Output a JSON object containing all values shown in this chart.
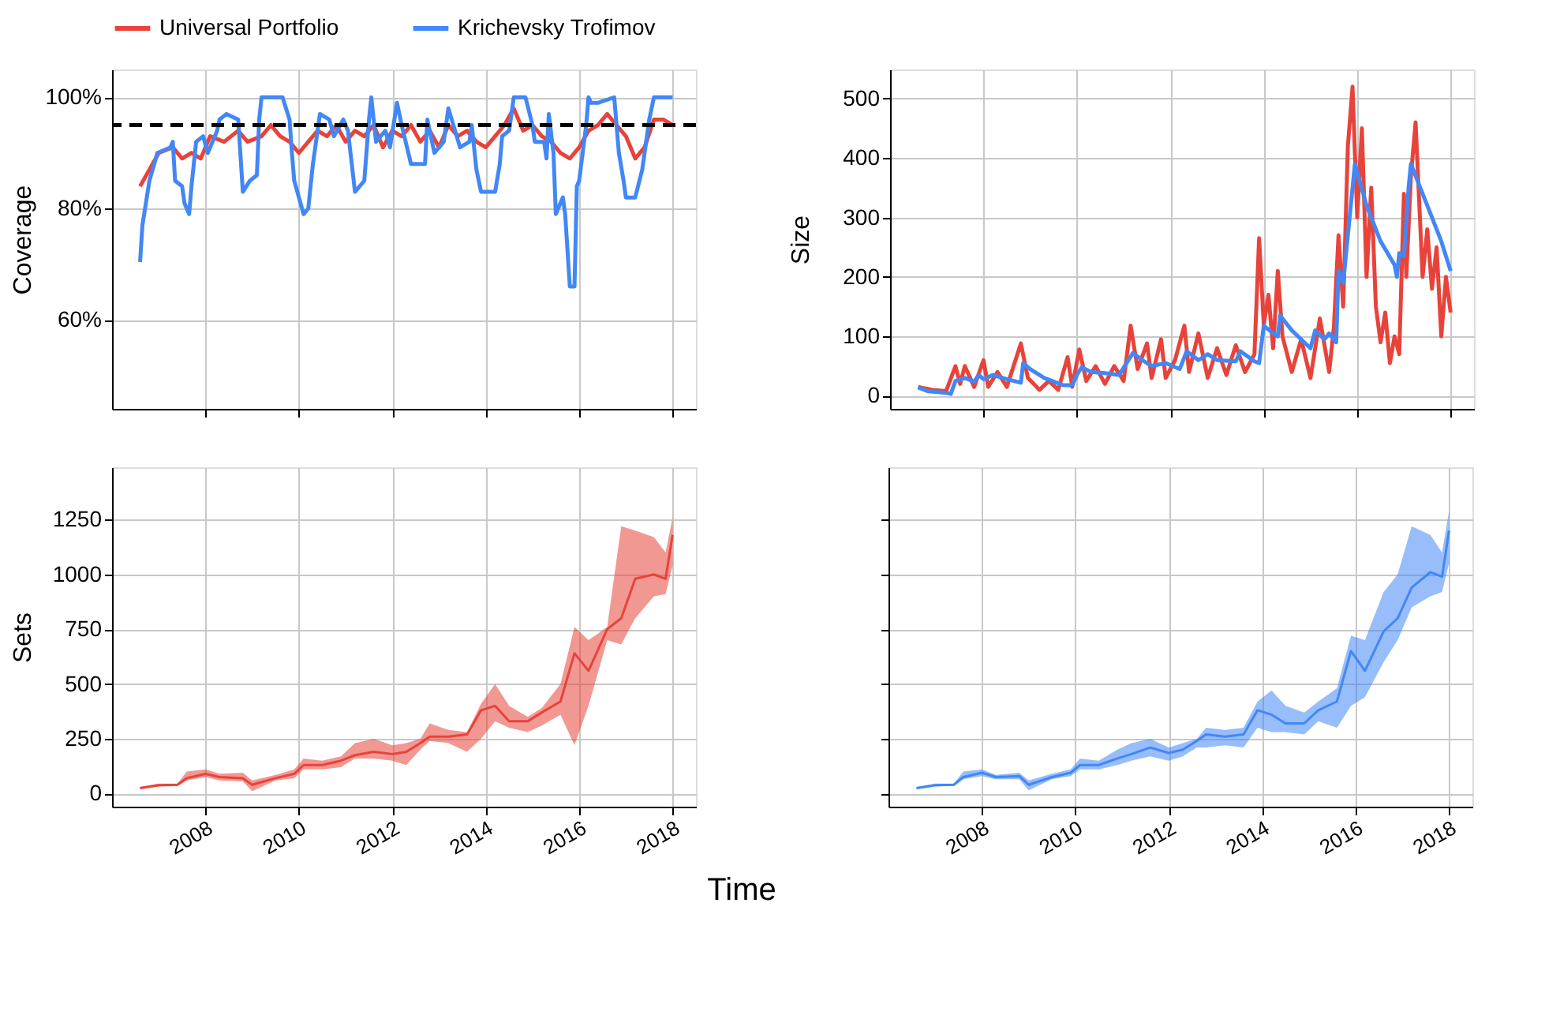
{
  "chart_data": [
    {
      "type": "line",
      "ylabel": "Coverage",
      "legend": "top left",
      "grid": true,
      "tick_labels": "y",
      "line_style": "solid",
      "xlim": [
        2006.0,
        2018.5
      ],
      "xticks": [
        2008,
        2010,
        2012,
        2014,
        2016,
        2018
      ],
      "ylim": [
        44,
        105
      ],
      "yticks": [
        {
          "value": 60,
          "label": "60%"
        },
        {
          "value": 80,
          "label": "80%"
        },
        {
          "value": 100,
          "label": "100%"
        }
      ],
      "ref_lines": [
        {
          "axis": "y",
          "value": 95,
          "color": "#000000",
          "line_style": "dashed"
        }
      ],
      "series": [
        {
          "name": "Universal Portfolio",
          "color": "#e8433a",
          "x": [
            2006.6,
            2006.8,
            2007.0,
            2007.3,
            2007.5,
            2007.7,
            2007.9,
            2008.1,
            2008.4,
            2008.7,
            2008.9,
            2009.2,
            2009.4,
            2009.6,
            2009.8,
            2010.0,
            2010.2,
            2010.4,
            2010.6,
            2010.8,
            2011.0,
            2011.2,
            2011.4,
            2011.6,
            2011.8,
            2012.0,
            2012.2,
            2012.4,
            2012.6,
            2012.8,
            2013.0,
            2013.2,
            2013.4,
            2013.6,
            2013.8,
            2014.0,
            2014.2,
            2014.4,
            2014.6,
            2014.8,
            2015.0,
            2015.2,
            2015.4,
            2015.6,
            2015.8,
            2016.0,
            2016.2,
            2016.4,
            2016.6,
            2016.8,
            2017.0,
            2017.2,
            2017.4,
            2017.6,
            2017.8,
            2018.0
          ],
          "values": [
            84,
            87,
            90,
            91,
            89,
            90,
            89,
            93,
            92,
            94,
            92,
            93,
            95,
            93,
            92,
            90,
            92,
            94,
            93,
            95,
            92,
            94,
            93,
            95,
            91,
            94,
            93,
            95,
            92,
            94,
            91,
            95,
            93,
            94,
            92,
            91,
            93,
            95,
            98,
            94,
            95,
            93,
            92,
            90,
            89,
            91,
            94,
            95,
            97,
            95,
            93,
            89,
            91,
            96,
            96,
            95
          ]
        },
        {
          "name": "Krichevsky Trofimov",
          "color": "#4287f5",
          "x": [
            2006.6,
            2006.65,
            2006.8,
            2006.97,
            2007.25,
            2007.3,
            2007.35,
            2007.5,
            2007.55,
            2007.65,
            2007.7,
            2007.8,
            2007.95,
            2008.05,
            2008.25,
            2008.3,
            2008.45,
            2008.7,
            2008.8,
            2008.95,
            2009.1,
            2009.15,
            2009.2,
            2009.65,
            2009.8,
            2009.85,
            2009.9,
            2010.1,
            2010.2,
            2010.3,
            2010.45,
            2010.65,
            2010.75,
            2010.95,
            2011.05,
            2011.2,
            2011.4,
            2011.5,
            2011.55,
            2011.65,
            2011.85,
            2011.95,
            2012.1,
            2012.2,
            2012.4,
            2012.7,
            2012.75,
            2012.9,
            2013.1,
            2013.2,
            2013.45,
            2013.65,
            2013.7,
            2013.8,
            2013.9,
            2014.2,
            2014.3,
            2014.35,
            2014.5,
            2014.6,
            2014.85,
            2015.0,
            2015.05,
            2015.25,
            2015.3,
            2015.35,
            2015.45,
            2015.5,
            2015.65,
            2015.7,
            2015.8,
            2015.9,
            2015.95,
            2016.0,
            2016.15,
            2016.2,
            2016.25,
            2016.4,
            2016.75,
            2016.8,
            2016.85,
            2016.95,
            2017.0,
            2017.2,
            2017.35,
            2017.5,
            2017.6,
            2018.0
          ],
          "values": [
            70.4,
            77,
            85,
            90,
            91,
            92,
            85,
            84,
            81,
            79,
            84,
            92,
            93,
            90,
            94,
            96,
            97,
            96,
            83,
            85,
            86,
            96,
            100,
            100,
            96,
            90,
            85,
            79,
            80,
            88,
            97,
            96,
            93,
            96,
            94,
            83,
            85,
            96,
            100,
            92,
            94,
            91,
            99,
            95,
            88,
            88,
            96,
            90,
            92,
            98,
            91,
            92,
            95,
            87,
            83,
            83,
            88,
            93,
            94,
            100,
            100,
            95,
            92,
            92,
            89,
            97,
            90,
            79,
            82,
            79,
            66,
            66,
            84,
            85,
            95,
            100,
            99,
            99,
            100,
            95,
            90,
            85,
            82,
            82,
            87,
            96,
            100,
            100
          ]
        }
      ]
    },
    {
      "type": "line",
      "ylabel": "Size",
      "grid": true,
      "tick_labels": "y",
      "xlim": [
        2006.0,
        2018.5
      ],
      "xticks": [
        2008,
        2010,
        2012,
        2014,
        2016,
        2018
      ],
      "ylim": [
        -22,
        549
      ],
      "yticks": [
        0,
        100,
        200,
        300,
        400,
        500
      ],
      "series": [
        {
          "color": "#e8433a",
          "x": [
            2006.6,
            2006.9,
            2007.2,
            2007.4,
            2007.5,
            2007.6,
            2007.8,
            2008.0,
            2008.1,
            2008.3,
            2008.5,
            2008.8,
            2008.95,
            2009.2,
            2009.4,
            2009.6,
            2009.8,
            2009.9,
            2010.05,
            2010.2,
            2010.4,
            2010.6,
            2010.8,
            2011.0,
            2011.15,
            2011.3,
            2011.5,
            2011.6,
            2011.8,
            2011.9,
            2012.1,
            2012.3,
            2012.4,
            2012.6,
            2012.8,
            2013.0,
            2013.2,
            2013.4,
            2013.6,
            2013.8,
            2013.9,
            2014.0,
            2014.1,
            2014.2,
            2014.3,
            2014.4,
            2014.6,
            2014.8,
            2015.0,
            2015.2,
            2015.4,
            2015.5,
            2015.6,
            2015.7,
            2015.8,
            2015.9,
            2016.0,
            2016.1,
            2016.2,
            2016.3,
            2016.4,
            2016.5,
            2016.6,
            2016.7,
            2016.8,
            2016.9,
            2017.0,
            2017.05,
            2017.15,
            2017.25,
            2017.4,
            2017.5,
            2017.6,
            2017.7,
            2017.8,
            2017.9,
            2018.0
          ],
          "values": [
            15,
            10,
            8,
            50,
            20,
            50,
            15,
            60,
            15,
            40,
            15,
            88,
            30,
            10,
            25,
            10,
            65,
            15,
            78,
            25,
            50,
            20,
            50,
            25,
            118,
            45,
            88,
            30,
            95,
            30,
            60,
            118,
            40,
            105,
            30,
            80,
            35,
            85,
            40,
            70,
            265,
            120,
            170,
            80,
            210,
            100,
            40,
            95,
            30,
            130,
            40,
            115,
            270,
            150,
            420,
            520,
            300,
            450,
            200,
            350,
            150,
            90,
            140,
            55,
            100,
            70,
            340,
            200,
            370,
            460,
            200,
            280,
            180,
            250,
            100,
            200,
            140
          ]
        },
        {
          "color": "#4287f5",
          "x": [
            2006.6,
            2006.8,
            2007.2,
            2007.3,
            2007.4,
            2007.6,
            2007.8,
            2007.9,
            2008.0,
            2008.2,
            2008.5,
            2008.8,
            2008.85,
            2009.0,
            2009.3,
            2009.7,
            2009.9,
            2010.0,
            2010.1,
            2010.3,
            2010.6,
            2010.9,
            2011.2,
            2011.4,
            2011.6,
            2011.9,
            2012.2,
            2012.35,
            2012.6,
            2012.8,
            2013.0,
            2013.4,
            2013.5,
            2013.8,
            2013.9,
            2014.0,
            2014.2,
            2014.3,
            2014.35,
            2014.6,
            2015.0,
            2015.1,
            2015.3,
            2015.4,
            2015.55,
            2015.6,
            2015.7,
            2015.95,
            2016.2,
            2016.5,
            2016.8,
            2016.85,
            2016.9,
            2017.0,
            2017.1,
            2017.15,
            2017.5,
            2017.8,
            2018.0
          ],
          "values": [
            14,
            8,
            5,
            3,
            25,
            30,
            24,
            35,
            28,
            35,
            28,
            22,
            55,
            45,
            30,
            18,
            18,
            35,
            48,
            40,
            38,
            35,
            72,
            60,
            50,
            55,
            45,
            75,
            60,
            70,
            60,
            58,
            75,
            58,
            55,
            118,
            105,
            100,
            135,
            110,
            80,
            110,
            95,
            105,
            90,
            210,
            190,
            390,
            320,
            260,
            220,
            200,
            240,
            235,
            350,
            390,
            320,
            260,
            210
          ]
        }
      ]
    },
    {
      "type": "line",
      "ylabel": "Sets",
      "xlabel": "Time",
      "grid": true,
      "xlim": [
        2006.0,
        2018.5
      ],
      "xticks": [
        2008,
        2010,
        2012,
        2014,
        2016,
        2018
      ],
      "ylim": [
        -60,
        1489
      ],
      "yticks": [
        0,
        250,
        500,
        750,
        1000,
        1250
      ],
      "series": [
        {
          "color": "#e8433a",
          "x": [
            2006.6,
            2007.0,
            2007.4,
            2007.6,
            2008.0,
            2008.3,
            2008.8,
            2009.0,
            2009.5,
            2009.9,
            2010.1,
            2010.5,
            2010.9,
            2011.2,
            2011.6,
            2012.0,
            2012.3,
            2012.6,
            2012.8,
            2013.2,
            2013.6,
            2013.9,
            2014.2,
            2014.5,
            2014.9,
            2015.2,
            2015.6,
            2015.9,
            2016.2,
            2016.6,
            2016.9,
            2017.2,
            2017.6,
            2017.85,
            2018.0
          ],
          "values": [
            25,
            38,
            40,
            70,
            90,
            75,
            70,
            40,
            70,
            90,
            130,
            130,
            150,
            175,
            190,
            180,
            190,
            230,
            260,
            260,
            270,
            380,
            400,
            330,
            330,
            370,
            420,
            640,
            560,
            750,
            800,
            980,
            1000,
            980,
            1180
          ],
          "lower": [
            20,
            32,
            35,
            60,
            75,
            60,
            55,
            10,
            60,
            70,
            110,
            110,
            120,
            160,
            160,
            150,
            130,
            200,
            240,
            230,
            190,
            250,
            330,
            300,
            280,
            310,
            360,
            220,
            400,
            700,
            680,
            800,
            900,
            910,
            1040
          ],
          "upper": [
            30,
            45,
            45,
            100,
            110,
            90,
            95,
            60,
            85,
            110,
            160,
            150,
            170,
            230,
            250,
            220,
            230,
            250,
            320,
            290,
            280,
            410,
            500,
            400,
            350,
            390,
            500,
            760,
            700,
            760,
            1220,
            1200,
            1170,
            1100,
            1260
          ]
        }
      ]
    },
    {
      "type": "line",
      "grid": true,
      "tick_labels": "x",
      "xlim": [
        2006.0,
        2018.5
      ],
      "xticks": [
        2008,
        2010,
        2012,
        2014,
        2016,
        2018
      ],
      "ylim": [
        -60,
        1489
      ],
      "yticks": [
        0,
        250,
        500,
        750,
        1000,
        1250
      ],
      "series": [
        {
          "color": "#4287f5",
          "x": [
            2006.6,
            2007.0,
            2007.4,
            2007.6,
            2008.0,
            2008.3,
            2008.8,
            2009.0,
            2009.5,
            2009.9,
            2010.1,
            2010.5,
            2010.9,
            2011.2,
            2011.6,
            2012.0,
            2012.3,
            2012.6,
            2012.8,
            2013.2,
            2013.6,
            2013.9,
            2014.2,
            2014.5,
            2014.9,
            2015.2,
            2015.6,
            2015.9,
            2016.2,
            2016.6,
            2016.9,
            2017.2,
            2017.6,
            2017.85,
            2018.0
          ],
          "values": [
            25,
            38,
            40,
            75,
            95,
            75,
            80,
            40,
            75,
            95,
            130,
            130,
            160,
            180,
            210,
            185,
            200,
            240,
            270,
            260,
            270,
            380,
            360,
            320,
            320,
            380,
            420,
            650,
            560,
            740,
            800,
            940,
            1010,
            990,
            1200
          ],
          "lower": [
            20,
            32,
            35,
            65,
            80,
            65,
            65,
            15,
            65,
            80,
            110,
            110,
            130,
            150,
            170,
            150,
            170,
            210,
            210,
            220,
            210,
            300,
            280,
            280,
            270,
            330,
            300,
            400,
            440,
            600,
            700,
            850,
            900,
            920,
            1050
          ],
          "upper": [
            30,
            45,
            45,
            100,
            110,
            85,
            95,
            60,
            90,
            110,
            160,
            150,
            200,
            230,
            250,
            210,
            230,
            250,
            300,
            290,
            300,
            420,
            470,
            400,
            370,
            420,
            480,
            720,
            700,
            920,
            1000,
            1220,
            1180,
            1100,
            1290
          ]
        }
      ]
    }
  ]
}
